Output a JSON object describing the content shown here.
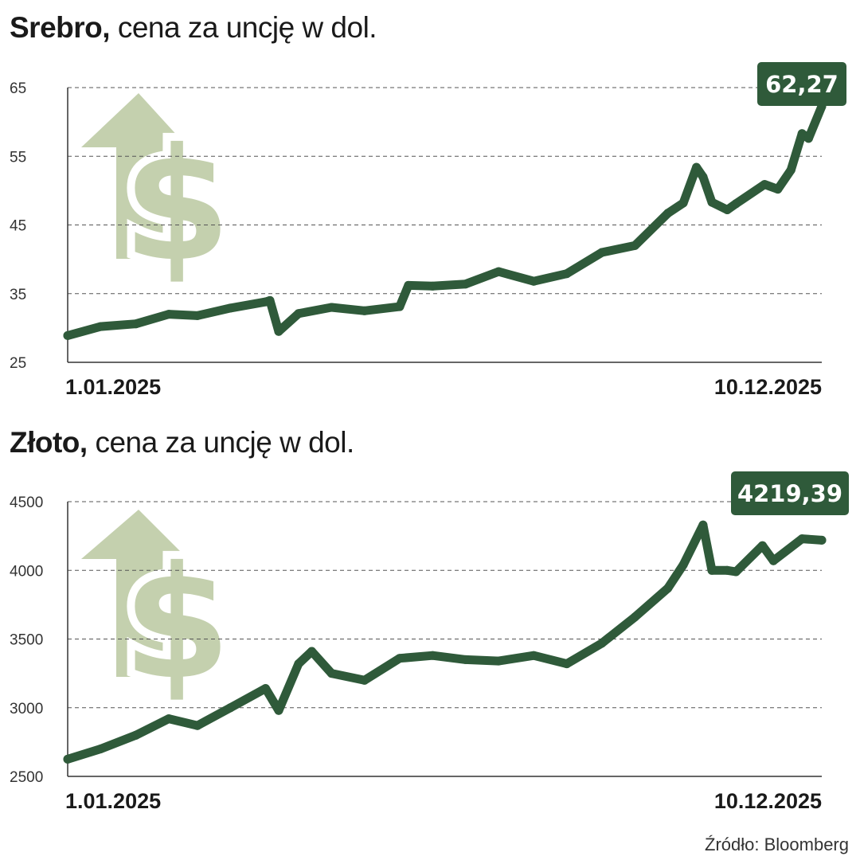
{
  "source": "Źródło: Bloomberg",
  "colors": {
    "line": "#2f5a3a",
    "callout": "#2f5a3a",
    "icon": "#c4d0ae",
    "grid": "#555555"
  },
  "chart_data": [
    {
      "type": "line",
      "title_bold": "Srebro,",
      "title_rest": " cena za uncję w dol.",
      "x_start_label": "1.01.2025",
      "x_end_label": "10.12.2025",
      "y_ticks": [
        "65",
        "55",
        "45",
        "35",
        "25"
      ],
      "ylim": [
        25,
        65
      ],
      "grid": true,
      "icon": "dollar-up-arrow-icon",
      "last_value_label": "62,27",
      "series": [
        {
          "x": [
            "2025-01-01",
            "2025-01-16",
            "2025-02-01",
            "2025-02-16",
            "2025-03-01",
            "2025-03-16",
            "2025-04-01",
            "2025-04-03",
            "2025-04-07",
            "2025-04-16",
            "2025-05-01",
            "2025-05-16",
            "2025-06-01",
            "2025-06-05",
            "2025-06-16",
            "2025-07-01",
            "2025-07-16",
            "2025-08-01",
            "2025-08-16",
            "2025-09-01",
            "2025-09-16",
            "2025-10-01",
            "2025-10-08",
            "2025-10-14",
            "2025-10-17",
            "2025-10-21",
            "2025-10-28",
            "2025-11-01",
            "2025-11-14",
            "2025-11-20",
            "2025-11-26",
            "2025-12-01",
            "2025-12-04",
            "2025-12-10"
          ],
          "y": [
            28.9,
            30.2,
            30.6,
            32.0,
            31.8,
            32.9,
            33.8,
            34.0,
            29.5,
            32.1,
            33.0,
            32.5,
            33.1,
            36.2,
            36.1,
            36.4,
            38.2,
            36.8,
            37.9,
            41.0,
            42.0,
            46.7,
            48.2,
            53.4,
            52.0,
            48.3,
            47.2,
            48.1,
            50.9,
            50.2,
            53.0,
            58.3,
            57.6,
            62.27
          ]
        }
      ]
    },
    {
      "type": "line",
      "title_bold": "Złoto,",
      "title_rest": " cena za uncję w dol.",
      "x_start_label": "1.01.2025",
      "x_end_label": "10.12.2025",
      "y_ticks": [
        "4500",
        "4000",
        "3500",
        "3000",
        "2500"
      ],
      "ylim": [
        2500,
        4500
      ],
      "grid": true,
      "icon": "dollar-up-arrow-icon",
      "last_value_label": "4219,39",
      "series": [
        {
          "x": [
            "2025-01-01",
            "2025-01-16",
            "2025-02-01",
            "2025-02-16",
            "2025-03-01",
            "2025-03-16",
            "2025-04-01",
            "2025-04-07",
            "2025-04-16",
            "2025-04-22",
            "2025-05-01",
            "2025-05-16",
            "2025-06-01",
            "2025-06-16",
            "2025-07-01",
            "2025-07-16",
            "2025-08-01",
            "2025-08-16",
            "2025-09-01",
            "2025-09-16",
            "2025-10-01",
            "2025-10-08",
            "2025-10-17",
            "2025-10-21",
            "2025-10-28",
            "2025-11-01",
            "2025-11-13",
            "2025-11-18",
            "2025-12-01",
            "2025-12-10"
          ],
          "y": [
            2625,
            2700,
            2800,
            2920,
            2870,
            3000,
            3140,
            2980,
            3320,
            3410,
            3250,
            3200,
            3360,
            3380,
            3350,
            3340,
            3380,
            3320,
            3470,
            3660,
            3870,
            4040,
            4330,
            4000,
            4000,
            3990,
            4180,
            4070,
            4230,
            4219.39
          ]
        }
      ]
    }
  ]
}
